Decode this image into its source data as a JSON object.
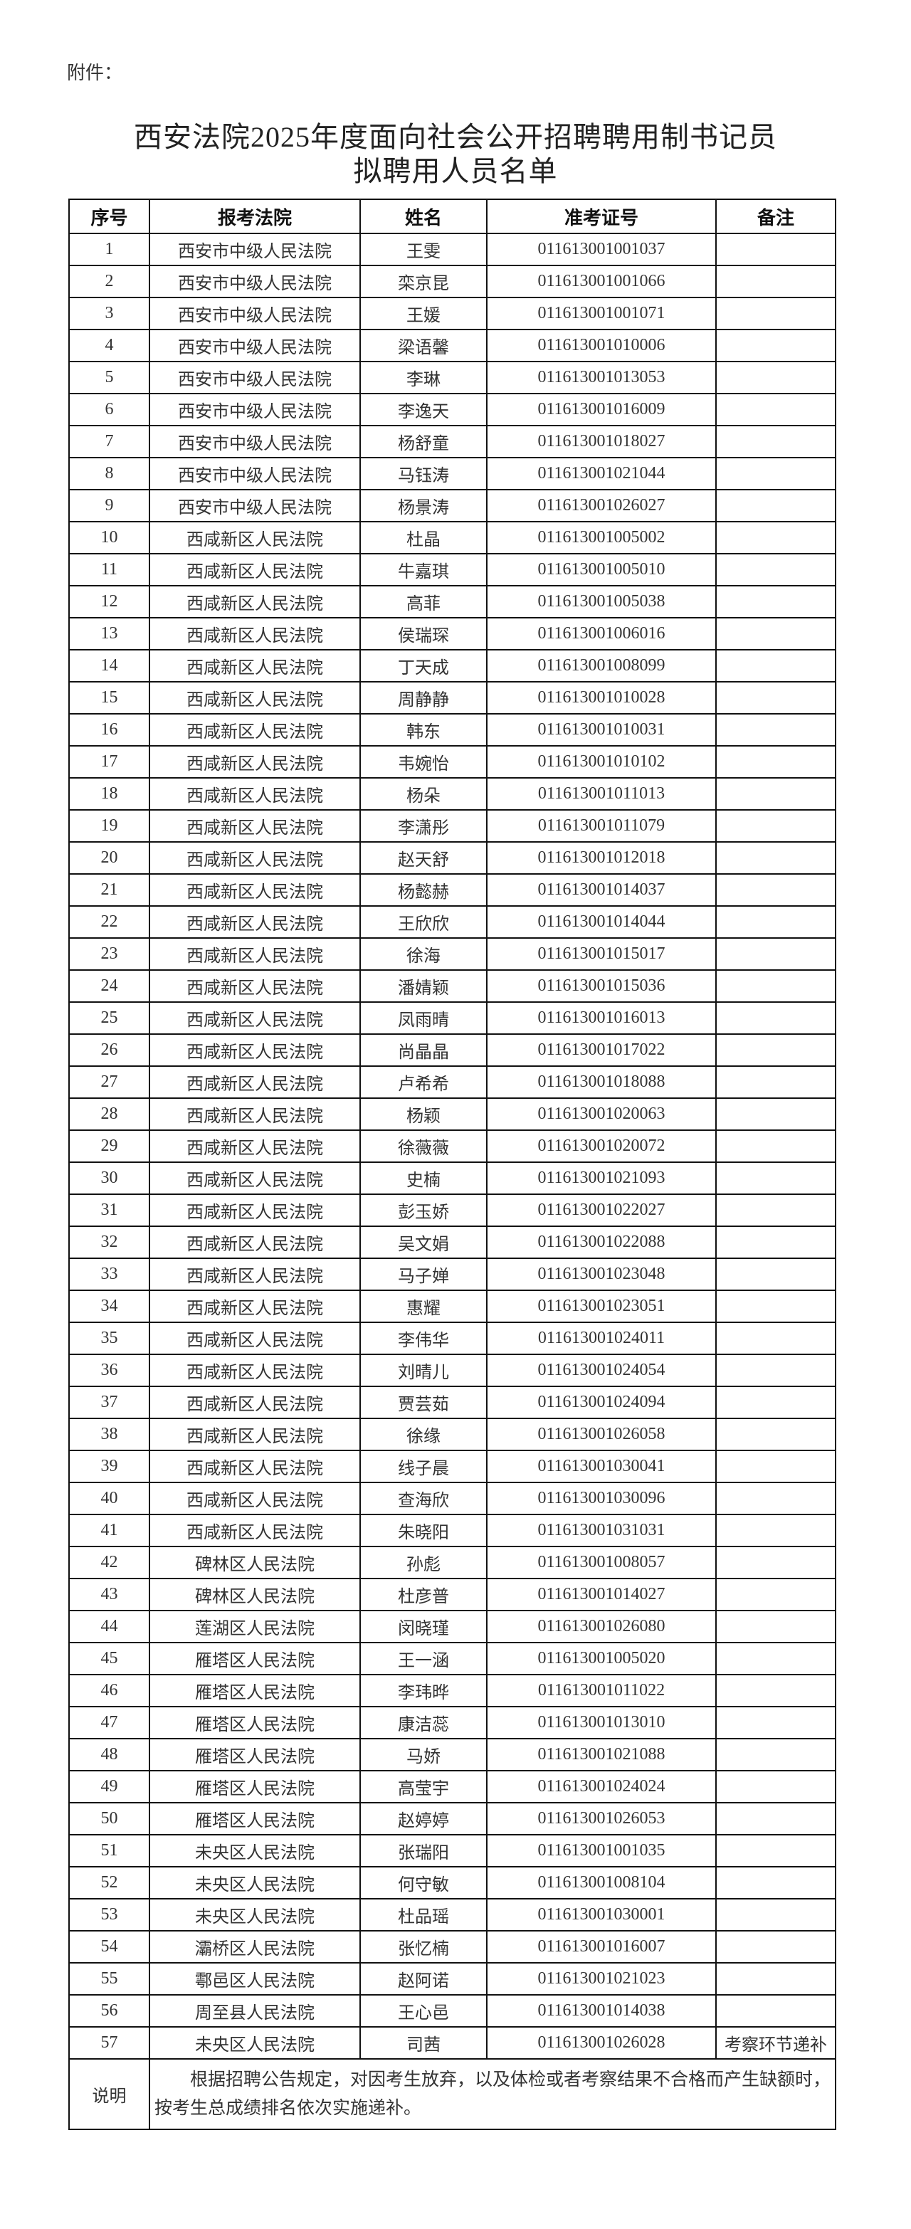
{
  "attachment_label": "附件：",
  "title_line1": "西安法院2025年度面向社会公开招聘聘用制书记员",
  "title_line2": "拟聘用人员名单",
  "table": {
    "headers": [
      "序号",
      "报考法院",
      "姓名",
      "准考证号",
      "备注"
    ],
    "rows": [
      [
        "1",
        "西安市中级人民法院",
        "王雯",
        "011613001001037",
        ""
      ],
      [
        "2",
        "西安市中级人民法院",
        "栾京昆",
        "011613001001066",
        ""
      ],
      [
        "3",
        "西安市中级人民法院",
        "王媛",
        "011613001001071",
        ""
      ],
      [
        "4",
        "西安市中级人民法院",
        "梁语馨",
        "011613001010006",
        ""
      ],
      [
        "5",
        "西安市中级人民法院",
        "李琳",
        "011613001013053",
        ""
      ],
      [
        "6",
        "西安市中级人民法院",
        "李逸天",
        "011613001016009",
        ""
      ],
      [
        "7",
        "西安市中级人民法院",
        "杨舒童",
        "011613001018027",
        ""
      ],
      [
        "8",
        "西安市中级人民法院",
        "马钰涛",
        "011613001021044",
        ""
      ],
      [
        "9",
        "西安市中级人民法院",
        "杨景涛",
        "011613001026027",
        ""
      ],
      [
        "10",
        "西咸新区人民法院",
        "杜晶",
        "011613001005002",
        ""
      ],
      [
        "11",
        "西咸新区人民法院",
        "牛嘉琪",
        "011613001005010",
        ""
      ],
      [
        "12",
        "西咸新区人民法院",
        "高菲",
        "011613001005038",
        ""
      ],
      [
        "13",
        "西咸新区人民法院",
        "侯瑞琛",
        "011613001006016",
        ""
      ],
      [
        "14",
        "西咸新区人民法院",
        "丁天成",
        "011613001008099",
        ""
      ],
      [
        "15",
        "西咸新区人民法院",
        "周静静",
        "011613001010028",
        ""
      ],
      [
        "16",
        "西咸新区人民法院",
        "韩东",
        "011613001010031",
        ""
      ],
      [
        "17",
        "西咸新区人民法院",
        "韦婉怡",
        "011613001010102",
        ""
      ],
      [
        "18",
        "西咸新区人民法院",
        "杨朵",
        "011613001011013",
        ""
      ],
      [
        "19",
        "西咸新区人民法院",
        "李潇彤",
        "011613001011079",
        ""
      ],
      [
        "20",
        "西咸新区人民法院",
        "赵天舒",
        "011613001012018",
        ""
      ],
      [
        "21",
        "西咸新区人民法院",
        "杨懿赫",
        "011613001014037",
        ""
      ],
      [
        "22",
        "西咸新区人民法院",
        "王欣欣",
        "011613001014044",
        ""
      ],
      [
        "23",
        "西咸新区人民法院",
        "徐海",
        "011613001015017",
        ""
      ],
      [
        "24",
        "西咸新区人民法院",
        "潘婧颖",
        "011613001015036",
        ""
      ],
      [
        "25",
        "西咸新区人民法院",
        "凤雨晴",
        "011613001016013",
        ""
      ],
      [
        "26",
        "西咸新区人民法院",
        "尚晶晶",
        "011613001017022",
        ""
      ],
      [
        "27",
        "西咸新区人民法院",
        "卢希希",
        "011613001018088",
        ""
      ],
      [
        "28",
        "西咸新区人民法院",
        "杨颖",
        "011613001020063",
        ""
      ],
      [
        "29",
        "西咸新区人民法院",
        "徐薇薇",
        "011613001020072",
        ""
      ],
      [
        "30",
        "西咸新区人民法院",
        "史楠",
        "011613001021093",
        ""
      ],
      [
        "31",
        "西咸新区人民法院",
        "彭玉娇",
        "011613001022027",
        ""
      ],
      [
        "32",
        "西咸新区人民法院",
        "吴文娟",
        "011613001022088",
        ""
      ],
      [
        "33",
        "西咸新区人民法院",
        "马子婵",
        "011613001023048",
        ""
      ],
      [
        "34",
        "西咸新区人民法院",
        "惠耀",
        "011613001023051",
        ""
      ],
      [
        "35",
        "西咸新区人民法院",
        "李伟华",
        "011613001024011",
        ""
      ],
      [
        "36",
        "西咸新区人民法院",
        "刘晴儿",
        "011613001024054",
        ""
      ],
      [
        "37",
        "西咸新区人民法院",
        "贾芸茹",
        "011613001024094",
        ""
      ],
      [
        "38",
        "西咸新区人民法院",
        "徐缘",
        "011613001026058",
        ""
      ],
      [
        "39",
        "西咸新区人民法院",
        "线子晨",
        "011613001030041",
        ""
      ],
      [
        "40",
        "西咸新区人民法院",
        "查海欣",
        "011613001030096",
        ""
      ],
      [
        "41",
        "西咸新区人民法院",
        "朱晓阳",
        "011613001031031",
        ""
      ],
      [
        "42",
        "碑林区人民法院",
        "孙彪",
        "011613001008057",
        ""
      ],
      [
        "43",
        "碑林区人民法院",
        "杜彦普",
        "011613001014027",
        ""
      ],
      [
        "44",
        "莲湖区人民法院",
        "闵晓瑾",
        "011613001026080",
        ""
      ],
      [
        "45",
        "雁塔区人民法院",
        "王一涵",
        "011613001005020",
        ""
      ],
      [
        "46",
        "雁塔区人民法院",
        "李玮晔",
        "011613001011022",
        ""
      ],
      [
        "47",
        "雁塔区人民法院",
        "康洁蕊",
        "011613001013010",
        ""
      ],
      [
        "48",
        "雁塔区人民法院",
        "马娇",
        "011613001021088",
        ""
      ],
      [
        "49",
        "雁塔区人民法院",
        "高莹宇",
        "011613001024024",
        ""
      ],
      [
        "50",
        "雁塔区人民法院",
        "赵婷婷",
        "011613001026053",
        ""
      ],
      [
        "51",
        "未央区人民法院",
        "张瑞阳",
        "011613001001035",
        ""
      ],
      [
        "52",
        "未央区人民法院",
        "何守敏",
        "011613001008104",
        ""
      ],
      [
        "53",
        "未央区人民法院",
        "杜品瑶",
        "011613001030001",
        ""
      ],
      [
        "54",
        "灞桥区人民法院",
        "张忆楠",
        "011613001016007",
        ""
      ],
      [
        "55",
        "鄠邑区人民法院",
        "赵阿诺",
        "011613001021023",
        ""
      ],
      [
        "56",
        "周至县人民法院",
        "王心邑",
        "011613001014038",
        ""
      ],
      [
        "57",
        "未央区人民法院",
        "司茜",
        "011613001026028",
        "考察环节递补"
      ]
    ],
    "note_label": "说明",
    "note_text": "根据招聘公告规定，对因考生放弃，以及体检或者考察结果不合格而产生缺额时，按考生总成绩排名依次实施递补。"
  }
}
